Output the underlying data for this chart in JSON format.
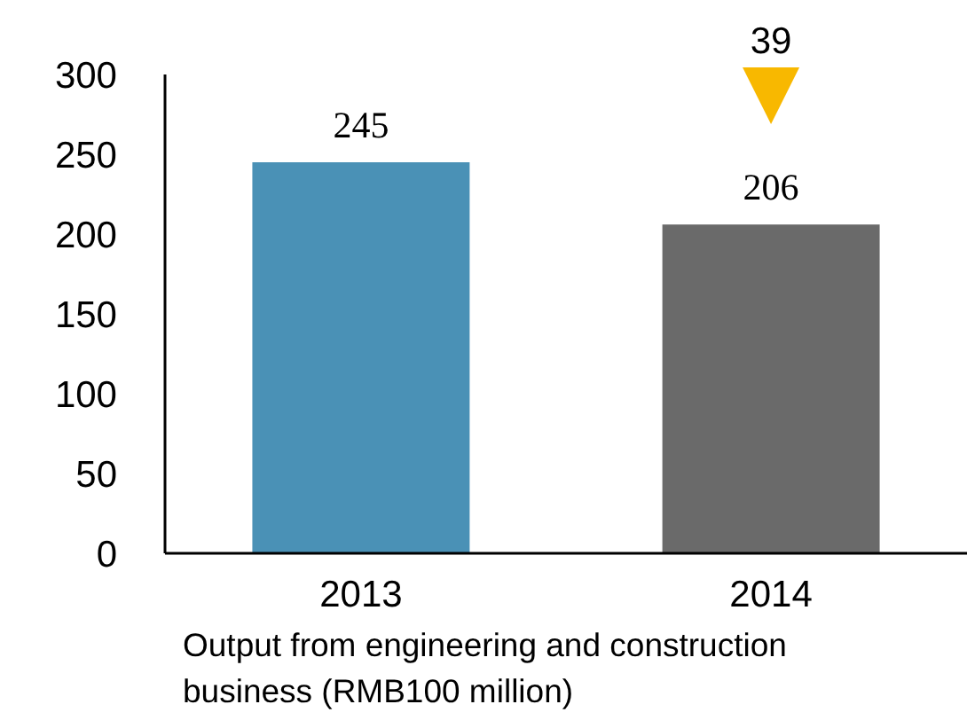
{
  "chart_data": {
    "type": "bar",
    "categories": [
      "2013",
      "2014"
    ],
    "values": [
      245,
      206
    ],
    "colors": [
      "#4a91b6",
      "#6a6a6a"
    ],
    "ylim": [
      0,
      300
    ],
    "yticks": [
      0,
      50,
      100,
      150,
      200,
      250,
      300
    ],
    "data_labels": true,
    "grid": false,
    "xlabel": "Output from engineering and construction business (RMB100 million)",
    "annotations": [
      "39"
    ]
  }
}
